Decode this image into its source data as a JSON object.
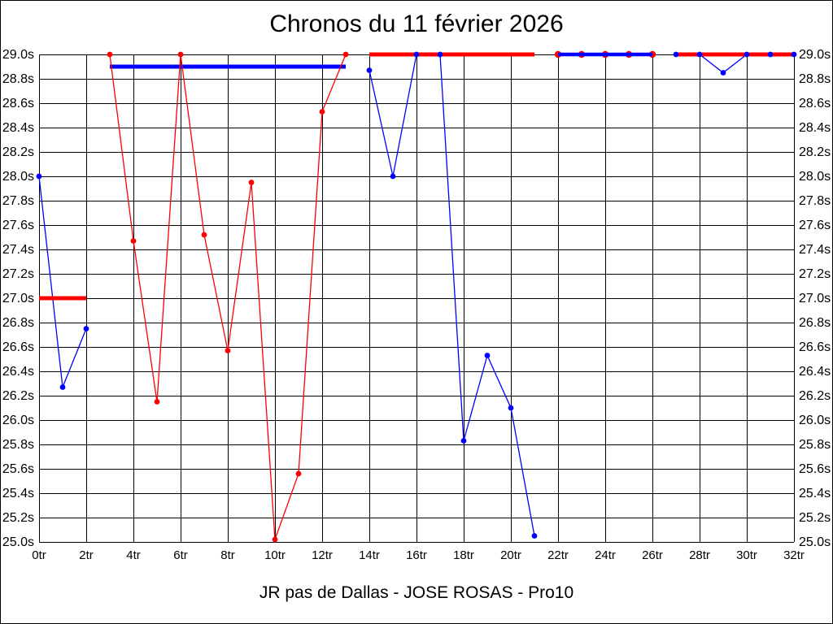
{
  "chart_data": {
    "type": "line",
    "title": "Chronos du 11 février 2026",
    "footer": "JR pas de Dallas - JOSE ROSAS - Pro10",
    "x_unit": "tr",
    "y_unit": "s",
    "xlim": [
      0,
      32
    ],
    "ylim": [
      25.0,
      29.0
    ],
    "x_tick_step": 2,
    "y_tick_step": 0.2,
    "grid": "on",
    "legend": "none",
    "x_ticks": [
      "0tr",
      "2tr",
      "4tr",
      "6tr",
      "8tr",
      "10tr",
      "12tr",
      "14tr",
      "16tr",
      "18tr",
      "20tr",
      "22tr",
      "24tr",
      "26tr",
      "28tr",
      "30tr",
      "32tr"
    ],
    "y_ticks_top_to_bottom": [
      "29.0s",
      "28.8s",
      "28.6s",
      "28.4s",
      "28.2s",
      "28.0s",
      "27.8s",
      "27.6s",
      "27.4s",
      "27.2s",
      "27.0s",
      "26.8s",
      "26.6s",
      "26.4s",
      "26.2s",
      "26.0s",
      "25.8s",
      "25.6s",
      "25.4s",
      "25.2s",
      "25.0s"
    ],
    "series": [
      {
        "name": "red",
        "color": "#ff0000",
        "segments": [
          {
            "x": [
              0,
              1,
              2
            ],
            "y": [
              27.0,
              27.0,
              27.0
            ]
          },
          {
            "x": [
              3,
              4,
              5,
              6,
              7,
              8,
              9,
              10,
              11,
              12,
              13
            ],
            "y": [
              29.0,
              27.47,
              26.15,
              29.0,
              27.52,
              26.57,
              27.95,
              25.02,
              25.56,
              28.53,
              29.0
            ]
          },
          {
            "x": [
              14,
              15,
              16,
              17,
              18,
              19,
              20,
              21
            ],
            "y": [
              29.0,
              29.0,
              29.0,
              29.0,
              29.0,
              29.0,
              29.0,
              29.0
            ]
          },
          {
            "x": [
              22,
              23,
              24,
              25,
              26
            ],
            "y": [
              29.0,
              29.0,
              29.0,
              29.0,
              29.0
            ]
          },
          {
            "x": [
              27,
              28,
              29,
              30,
              31,
              32
            ],
            "y": [
              29.0,
              29.0,
              29.0,
              29.0,
              29.0,
              29.0
            ]
          }
        ]
      },
      {
        "name": "blue",
        "color": "#0000ff",
        "segments": [
          {
            "x": [
              0,
              1,
              2
            ],
            "y": [
              28.0,
              26.27,
              26.75
            ]
          },
          {
            "x": [
              3,
              4,
              5,
              6,
              7,
              8,
              9,
              10,
              11,
              12,
              13
            ],
            "y": [
              28.9,
              28.9,
              28.9,
              28.9,
              28.9,
              28.9,
              28.9,
              28.9,
              28.9,
              28.9,
              28.9
            ]
          },
          {
            "x": [
              14,
              15,
              16,
              17,
              18,
              19,
              20,
              21
            ],
            "y": [
              28.87,
              28.0,
              29.0,
              29.0,
              25.83,
              26.53,
              26.1,
              25.05
            ]
          },
          {
            "x": [
              22,
              23,
              24,
              25,
              26
            ],
            "y": [
              29.0,
              29.0,
              29.0,
              29.0,
              29.0
            ]
          },
          {
            "x": [
              27,
              28,
              29,
              30,
              31,
              32
            ],
            "y": [
              29.0,
              29.0,
              28.85,
              29.0,
              29.0,
              29.0
            ]
          }
        ]
      }
    ]
  }
}
